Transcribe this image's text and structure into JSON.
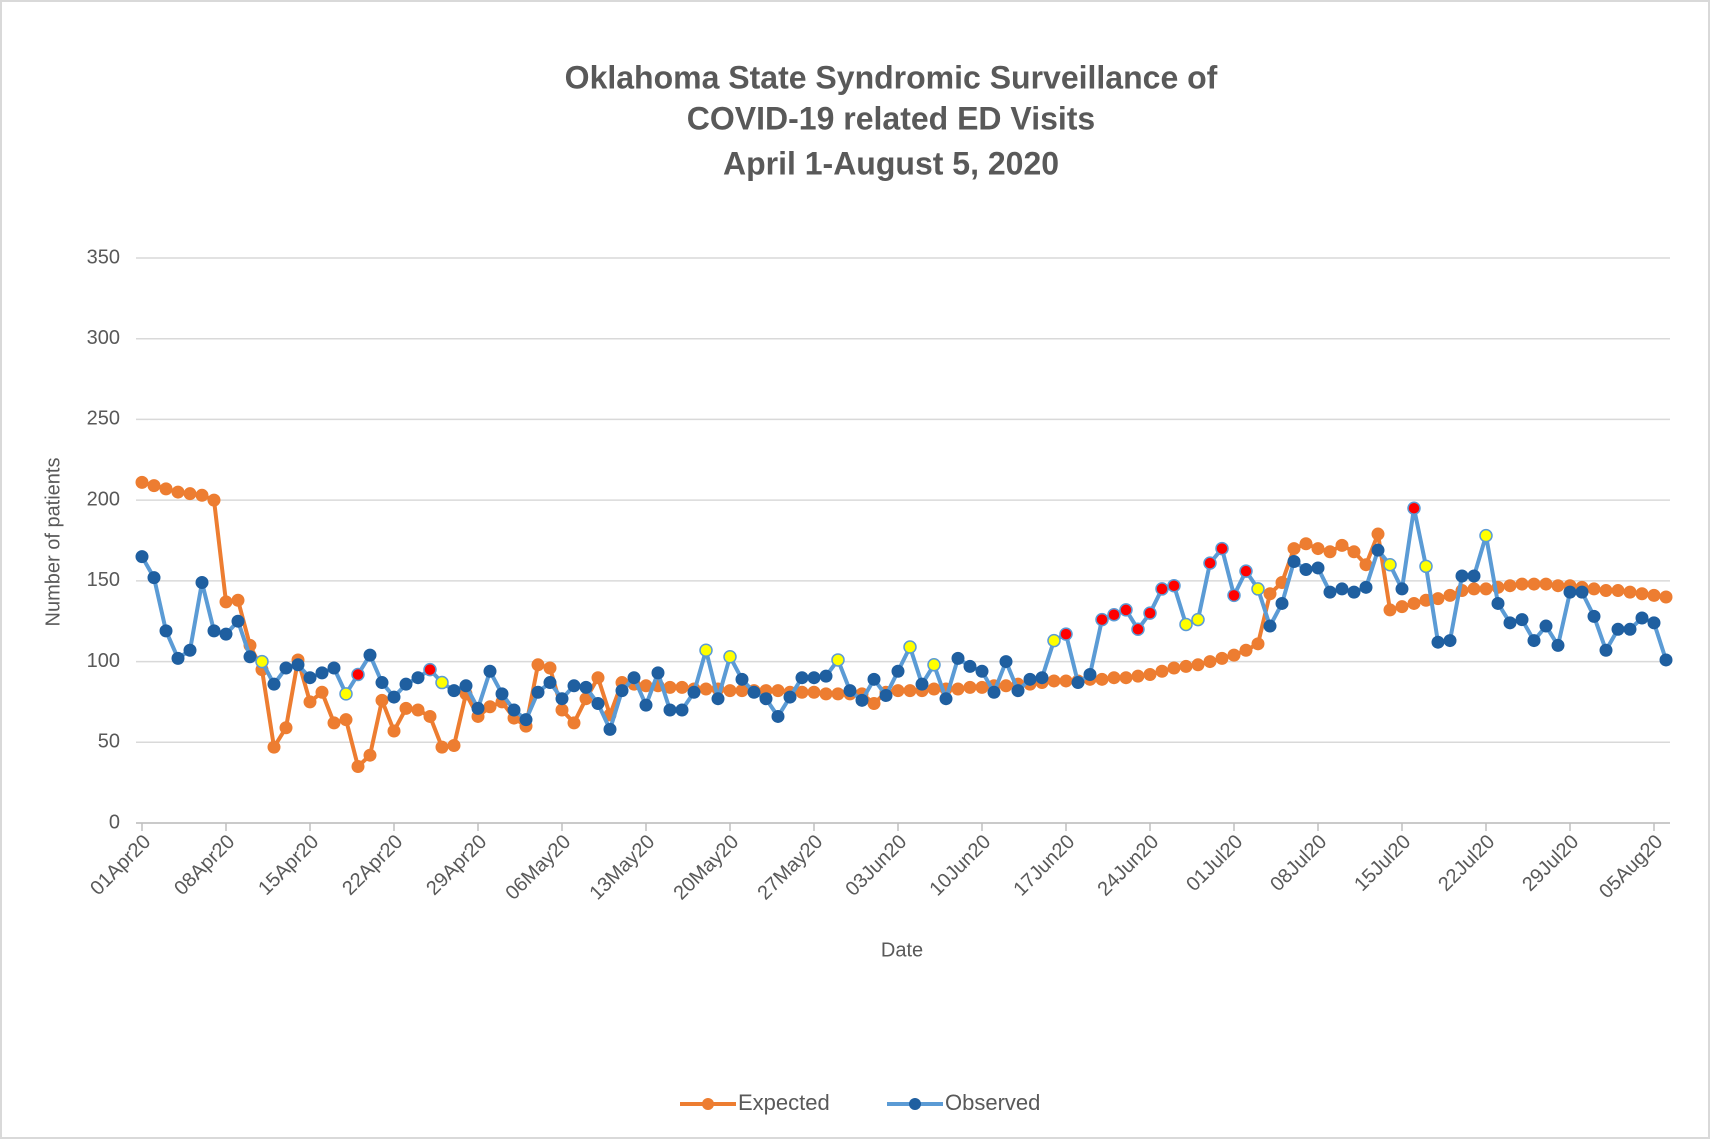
{
  "chart_data": {
    "type": "line",
    "title": [
      "Oklahoma State Syndromic Surveillance of",
      "COVID-19 related ED Visits",
      "April 1-August 5, 2020"
    ],
    "x_label": "Date",
    "y_label": "Number of patients",
    "categories": [
      "01Apr20",
      null,
      null,
      null,
      null,
      null,
      null,
      "08Apr20",
      null,
      null,
      null,
      null,
      null,
      null,
      "15Apr20",
      null,
      null,
      null,
      null,
      null,
      null,
      "22Apr20",
      null,
      null,
      null,
      null,
      null,
      null,
      "29Apr20",
      null,
      null,
      null,
      null,
      null,
      null,
      "06May20",
      null,
      null,
      null,
      null,
      null,
      null,
      "13May20",
      null,
      null,
      null,
      null,
      null,
      null,
      "20May20",
      null,
      null,
      null,
      null,
      null,
      null,
      "27May20",
      null,
      null,
      null,
      null,
      null,
      null,
      "03Jun20",
      null,
      null,
      null,
      null,
      null,
      null,
      "10Jun20",
      null,
      null,
      null,
      null,
      null,
      null,
      "17Jun20",
      null,
      null,
      null,
      null,
      null,
      null,
      "24Jun20",
      null,
      null,
      null,
      null,
      null,
      null,
      "01Jul20",
      null,
      null,
      null,
      null,
      null,
      null,
      "08Jul20",
      null,
      null,
      null,
      null,
      null,
      null,
      "15Jul20",
      null,
      null,
      null,
      null,
      null,
      null,
      "22Jul20",
      null,
      null,
      null,
      null,
      null,
      null,
      "29Jul20",
      null,
      null,
      null,
      null,
      null,
      null,
      "05Aug20",
      null
    ],
    "series": [
      {
        "name": "Expected",
        "color": "#ed7d31",
        "marker_color": "#ed7d31",
        "values": [
          211,
          209,
          207,
          205,
          204,
          203,
          200,
          137,
          138,
          110,
          95,
          47,
          59,
          101,
          75,
          81,
          62,
          64,
          35,
          42,
          76,
          57,
          71,
          70,
          66,
          47,
          48,
          80,
          66,
          72,
          75,
          65,
          60,
          98,
          96,
          70,
          62,
          77,
          90,
          67,
          87,
          86,
          85,
          85,
          84,
          84,
          83,
          83,
          83,
          82,
          82,
          82,
          82,
          82,
          81,
          81,
          81,
          80,
          80,
          80,
          80,
          74,
          81,
          82,
          82,
          82,
          83,
          83,
          83,
          84,
          84,
          85,
          85,
          86,
          86,
          87,
          88,
          88,
          88,
          89,
          89,
          90,
          90,
          91,
          92,
          94,
          96,
          97,
          98,
          100,
          102,
          104,
          107,
          111,
          142,
          149,
          170,
          173,
          170,
          168,
          172,
          168,
          160,
          179,
          132,
          134,
          136,
          138,
          139,
          141,
          144,
          145,
          145,
          146,
          147,
          148,
          148,
          148,
          147,
          147,
          146,
          145,
          144,
          144,
          143,
          142,
          141,
          140
        ]
      },
      {
        "name": "Observed",
        "color": "#5b9bd5",
        "marker_color": "#1f5fa0",
        "values": [
          165,
          152,
          119,
          102,
          107,
          149,
          119,
          117,
          125,
          103,
          100,
          86,
          96,
          98,
          90,
          93,
          96,
          80,
          92,
          104,
          87,
          78,
          86,
          90,
          95,
          87,
          82,
          85,
          71,
          94,
          80,
          70,
          64,
          81,
          87,
          77,
          85,
          84,
          74,
          58,
          82,
          90,
          73,
          93,
          70,
          70,
          81,
          107,
          77,
          103,
          89,
          81,
          77,
          66,
          78,
          90,
          90,
          91,
          101,
          82,
          76,
          89,
          79,
          94,
          109,
          86,
          98,
          77,
          102,
          97,
          94,
          81,
          100,
          82,
          89,
          90,
          113,
          117,
          87,
          92,
          126,
          129,
          132,
          120,
          130,
          145,
          147,
          123,
          126,
          161,
          170,
          141,
          156,
          145,
          122,
          136,
          162,
          157,
          158,
          143,
          145,
          143,
          146,
          169,
          160,
          145,
          195,
          159,
          112,
          113,
          153,
          153,
          178,
          136,
          124,
          126,
          113,
          122,
          110,
          143,
          143,
          128,
          107,
          120,
          120,
          127,
          124,
          101
        ],
        "point_colors": [
          null,
          null,
          null,
          null,
          null,
          null,
          null,
          null,
          null,
          null,
          "#ffff00",
          null,
          null,
          null,
          null,
          null,
          null,
          "#ffff00",
          "#ff0000",
          null,
          null,
          null,
          null,
          null,
          "#ff0000",
          "#ffff00",
          null,
          null,
          null,
          null,
          null,
          null,
          null,
          null,
          null,
          null,
          null,
          null,
          null,
          null,
          null,
          null,
          null,
          null,
          null,
          null,
          null,
          "#ffff00",
          null,
          "#ffff00",
          null,
          null,
          null,
          null,
          null,
          null,
          null,
          null,
          "#ffff00",
          null,
          null,
          null,
          null,
          null,
          "#ffff00",
          null,
          "#ffff00",
          null,
          null,
          null,
          null,
          null,
          null,
          null,
          null,
          null,
          "#ffff00",
          "#ff0000",
          null,
          null,
          "#ff0000",
          "#ff0000",
          "#ff0000",
          "#ff0000",
          "#ff0000",
          "#ff0000",
          "#ff0000",
          "#ffff00",
          "#ffff00",
          "#ff0000",
          "#ff0000",
          "#ff0000",
          "#ff0000",
          "#ffff00",
          null,
          null,
          null,
          null,
          null,
          null,
          null,
          null,
          null,
          null,
          "#ffff00",
          null,
          "#ff0000",
          "#ffff00",
          null,
          null,
          null,
          null,
          "#ffff00",
          null,
          null,
          null,
          null,
          null,
          null,
          null,
          null,
          null,
          null,
          null,
          null,
          null,
          null,
          null
        ]
      }
    ],
    "ylim": [
      0,
      350
    ],
    "yticks": [
      0,
      50,
      100,
      150,
      200,
      250,
      300,
      350
    ],
    "grid": true,
    "legend": "bottom"
  }
}
